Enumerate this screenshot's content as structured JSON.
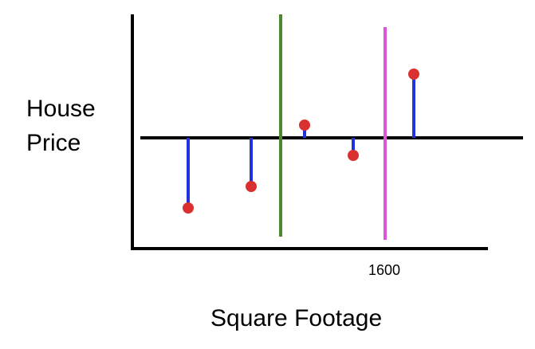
{
  "labels": {
    "y_line1": "House",
    "y_line2": "Price",
    "x": "Square Footage",
    "tick": "1600"
  },
  "colors": {
    "axes": "#000000",
    "mean_line": "#000000",
    "residual": "#2233dd",
    "point": "#d93030",
    "split_green": "#4a8a2a",
    "split_magenta": "#dd55dd"
  },
  "chart_data": {
    "type": "scatter",
    "description_units": "relative price vs. mean line",
    "points": [
      {
        "x": 1,
        "y": -88
      },
      {
        "x": 2,
        "y": -61
      },
      {
        "x": 3,
        "y": 16
      },
      {
        "x": 4,
        "y": -22
      },
      {
        "x": 5,
        "y": 80
      }
    ],
    "splits": [
      "green",
      "magenta"
    ],
    "tick_labels": [
      "1600"
    ]
  }
}
